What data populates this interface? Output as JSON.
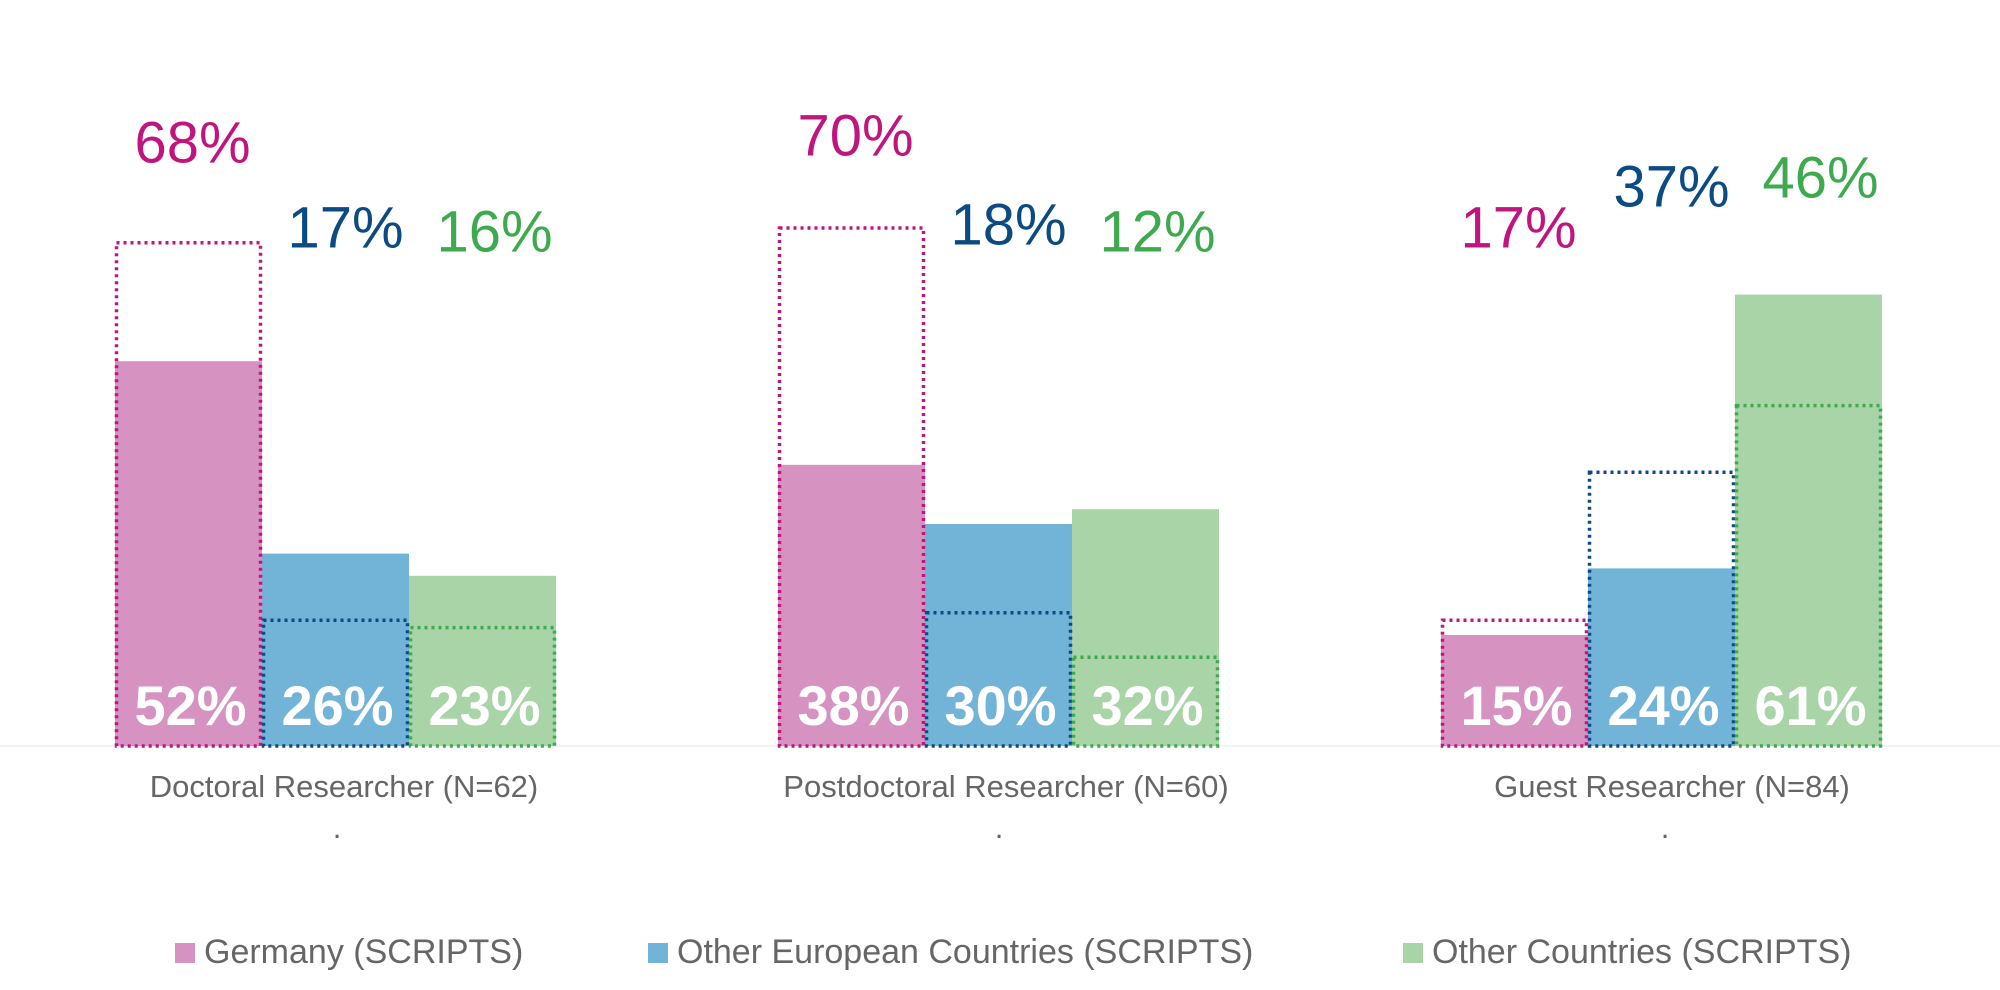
{
  "chart_data": {
    "type": "bar",
    "categories": [
      "Doctoral Researcher (N=62)",
      "Postdoctoral Researcher (N=60)",
      "Guest Researcher (N=84)"
    ],
    "category_notes": [
      ".",
      ".",
      "."
    ],
    "ylim": [
      0,
      100
    ],
    "series": [
      {
        "name": "Germany (SCRIPTS)",
        "color": "#d693c2",
        "values": [
          52,
          38,
          15
        ],
        "value_labels": [
          "52%",
          "38%",
          "15%"
        ]
      },
      {
        "name": "Other European Countries (SCRIPTS)",
        "color": "#72b3d8",
        "values": [
          26,
          30,
          24
        ],
        "value_labels": [
          "26%",
          "30%",
          "24%"
        ]
      },
      {
        "name": "Other Countries (SCRIPTS)",
        "color": "#a8d4a8",
        "values": [
          23,
          32,
          61
        ],
        "value_labels": [
          "23%",
          "32%",
          "61%"
        ]
      }
    ],
    "comparison_series": [
      {
        "color": "#c0157f",
        "values": [
          68,
          70,
          17
        ],
        "value_labels": [
          "68%",
          "70%",
          "17%"
        ]
      },
      {
        "color": "#0b4a82",
        "values": [
          17,
          18,
          37
        ],
        "value_labels": [
          "17%",
          "18%",
          "37%"
        ]
      },
      {
        "color": "#3daa4e",
        "values": [
          16,
          12,
          46
        ],
        "value_labels": [
          "16%",
          "12%",
          "46%"
        ]
      }
    ]
  }
}
